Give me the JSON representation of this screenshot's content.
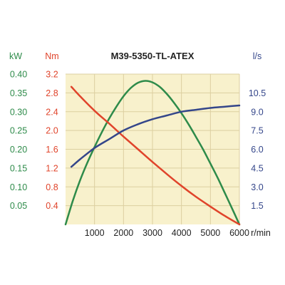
{
  "colors": {
    "plot_bg": "#f8f1cc",
    "grid": "#dccfa0",
    "power": "#2e8b4a",
    "torque": "#e0442b",
    "flow": "#34468a",
    "text": "#222222"
  },
  "chart_data": {
    "type": "line",
    "title": "M39-5350-TL-ATEX",
    "x_unit": "r/min",
    "x_range": [
      0,
      6000
    ],
    "x_ticks": [
      1000,
      2000,
      3000,
      4000,
      5000,
      6000
    ],
    "axes": {
      "power": {
        "unit": "kW",
        "range": [
          0,
          0.4
        ],
        "ticks": [
          "0.05",
          "0.10",
          "0.15",
          "0.20",
          "0.25",
          "0.30",
          "0.35",
          "0.40"
        ]
      },
      "torque": {
        "unit": "Nm",
        "range": [
          0,
          3.2
        ],
        "ticks": [
          "0.4",
          "0.8",
          "1.2",
          "1.6",
          "2.0",
          "2.4",
          "2.8",
          "3.2"
        ]
      },
      "flow": {
        "unit": "l/s",
        "range": [
          0,
          12.0
        ],
        "ticks": [
          "1.5",
          "3.0",
          "4.5",
          "6.0",
          "7.5",
          "9.0",
          "10.5"
        ]
      }
    },
    "grid": true,
    "series": [
      {
        "axis": "power",
        "x": [
          0,
          250,
          500,
          750,
          1000,
          1250,
          1500,
          1750,
          2000,
          2250,
          2500,
          2750,
          3000,
          3250,
          3500,
          3750,
          4000,
          4250,
          4500,
          4750,
          5000,
          5250,
          5500,
          5750,
          6000
        ],
        "y": [
          0,
          0.063,
          0.117,
          0.164,
          0.206,
          0.245,
          0.281,
          0.313,
          0.341,
          0.363,
          0.377,
          0.382,
          0.378,
          0.366,
          0.347,
          0.323,
          0.296,
          0.266,
          0.233,
          0.199,
          0.162,
          0.124,
          0.083,
          0.042,
          0
        ]
      },
      {
        "axis": "torque",
        "x": [
          200,
          500,
          1000,
          1500,
          2000,
          2500,
          3000,
          3500,
          4000,
          4500,
          5000,
          5500,
          6000
        ],
        "y": [
          2.93,
          2.73,
          2.42,
          2.15,
          1.87,
          1.6,
          1.33,
          1.07,
          0.82,
          0.59,
          0.38,
          0.18,
          0.0
        ]
      },
      {
        "axis": "flow",
        "x": [
          200,
          500,
          1000,
          1500,
          2000,
          2500,
          3000,
          3500,
          4000,
          4500,
          5000,
          5500,
          6000
        ],
        "y": [
          4.6,
          5.2,
          6.1,
          6.8,
          7.5,
          8.0,
          8.4,
          8.7,
          9.0,
          9.15,
          9.3,
          9.4,
          9.5
        ]
      }
    ]
  }
}
